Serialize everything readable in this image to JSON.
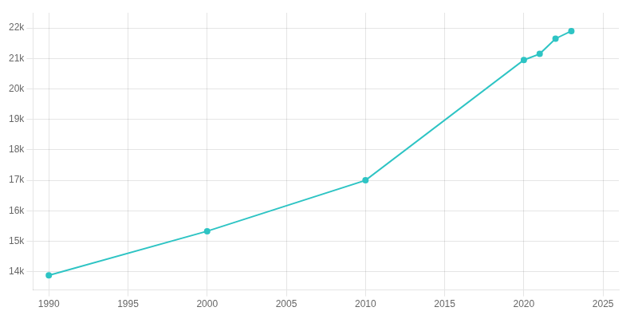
{
  "chart_data": {
    "type": "line",
    "x": [
      1990,
      2000,
      2010,
      2020,
      2021,
      2022,
      2023
    ],
    "values": [
      13880,
      15330,
      17000,
      20950,
      21150,
      21650,
      21900
    ],
    "color": "#2ec4c4",
    "marker": "circle",
    "xlim": [
      1989.0,
      2026.0
    ],
    "ylim": [
      13400,
      22500
    ],
    "xticks": [
      1990,
      1995,
      2000,
      2005,
      2010,
      2015,
      2020,
      2025
    ],
    "yticks": [
      {
        "value": 14000,
        "label": "14k"
      },
      {
        "value": 15000,
        "label": "15k"
      },
      {
        "value": 16000,
        "label": "16k"
      },
      {
        "value": 17000,
        "label": "17k"
      },
      {
        "value": 18000,
        "label": "18k"
      },
      {
        "value": 19000,
        "label": "19k"
      },
      {
        "value": 20000,
        "label": "20k"
      },
      {
        "value": 21000,
        "label": "21k"
      },
      {
        "value": 22000,
        "label": "22k"
      }
    ],
    "grid": true
  }
}
